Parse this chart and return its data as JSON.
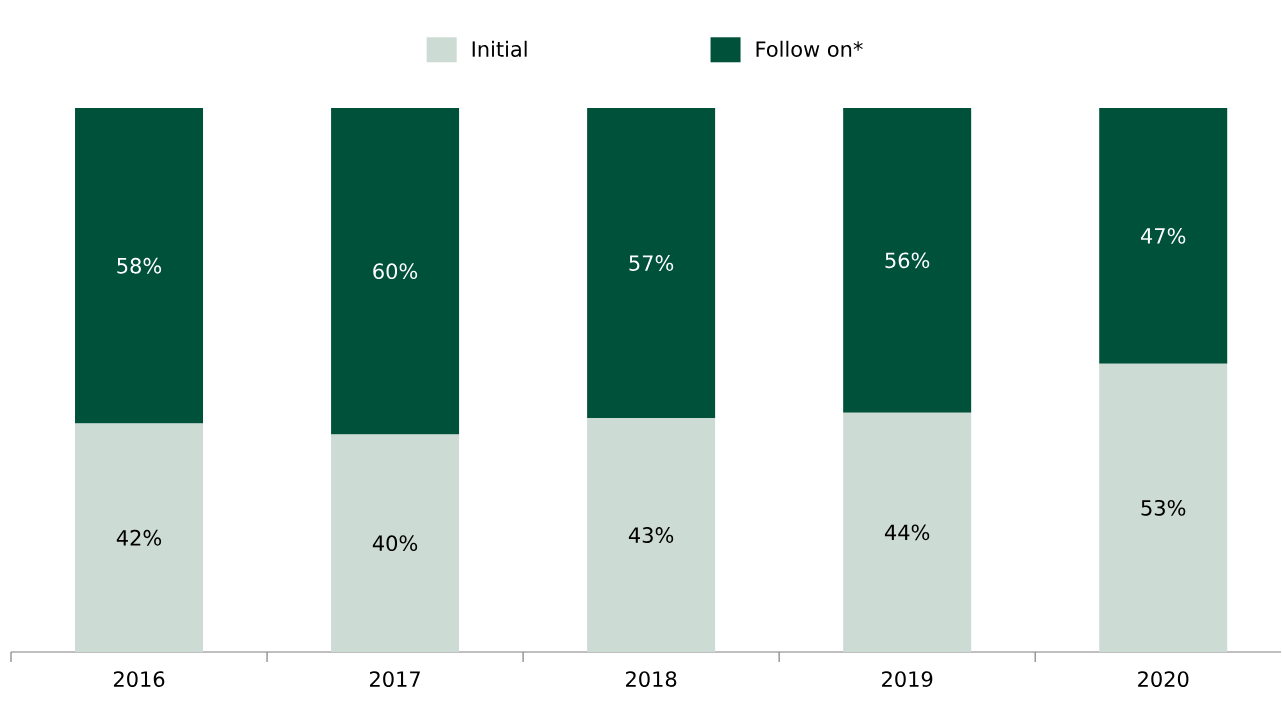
{
  "chart_data": {
    "type": "bar",
    "stacked": true,
    "categories": [
      "2016",
      "2017",
      "2018",
      "2019",
      "2020"
    ],
    "legend": "top",
    "grid": false,
    "series": [
      {
        "name": "Initial",
        "color": "#ccdbd4",
        "values": [
          42,
          40,
          43,
          44,
          53
        ],
        "value_labels": [
          "42%",
          "40%",
          "43%",
          "44%",
          "53%"
        ]
      },
      {
        "name": "Follow on*",
        "color": "#00513a",
        "values": [
          58,
          60,
          57,
          56,
          47
        ],
        "value_labels": [
          "58%",
          "60%",
          "57%",
          "56%",
          "47%"
        ]
      }
    ]
  }
}
